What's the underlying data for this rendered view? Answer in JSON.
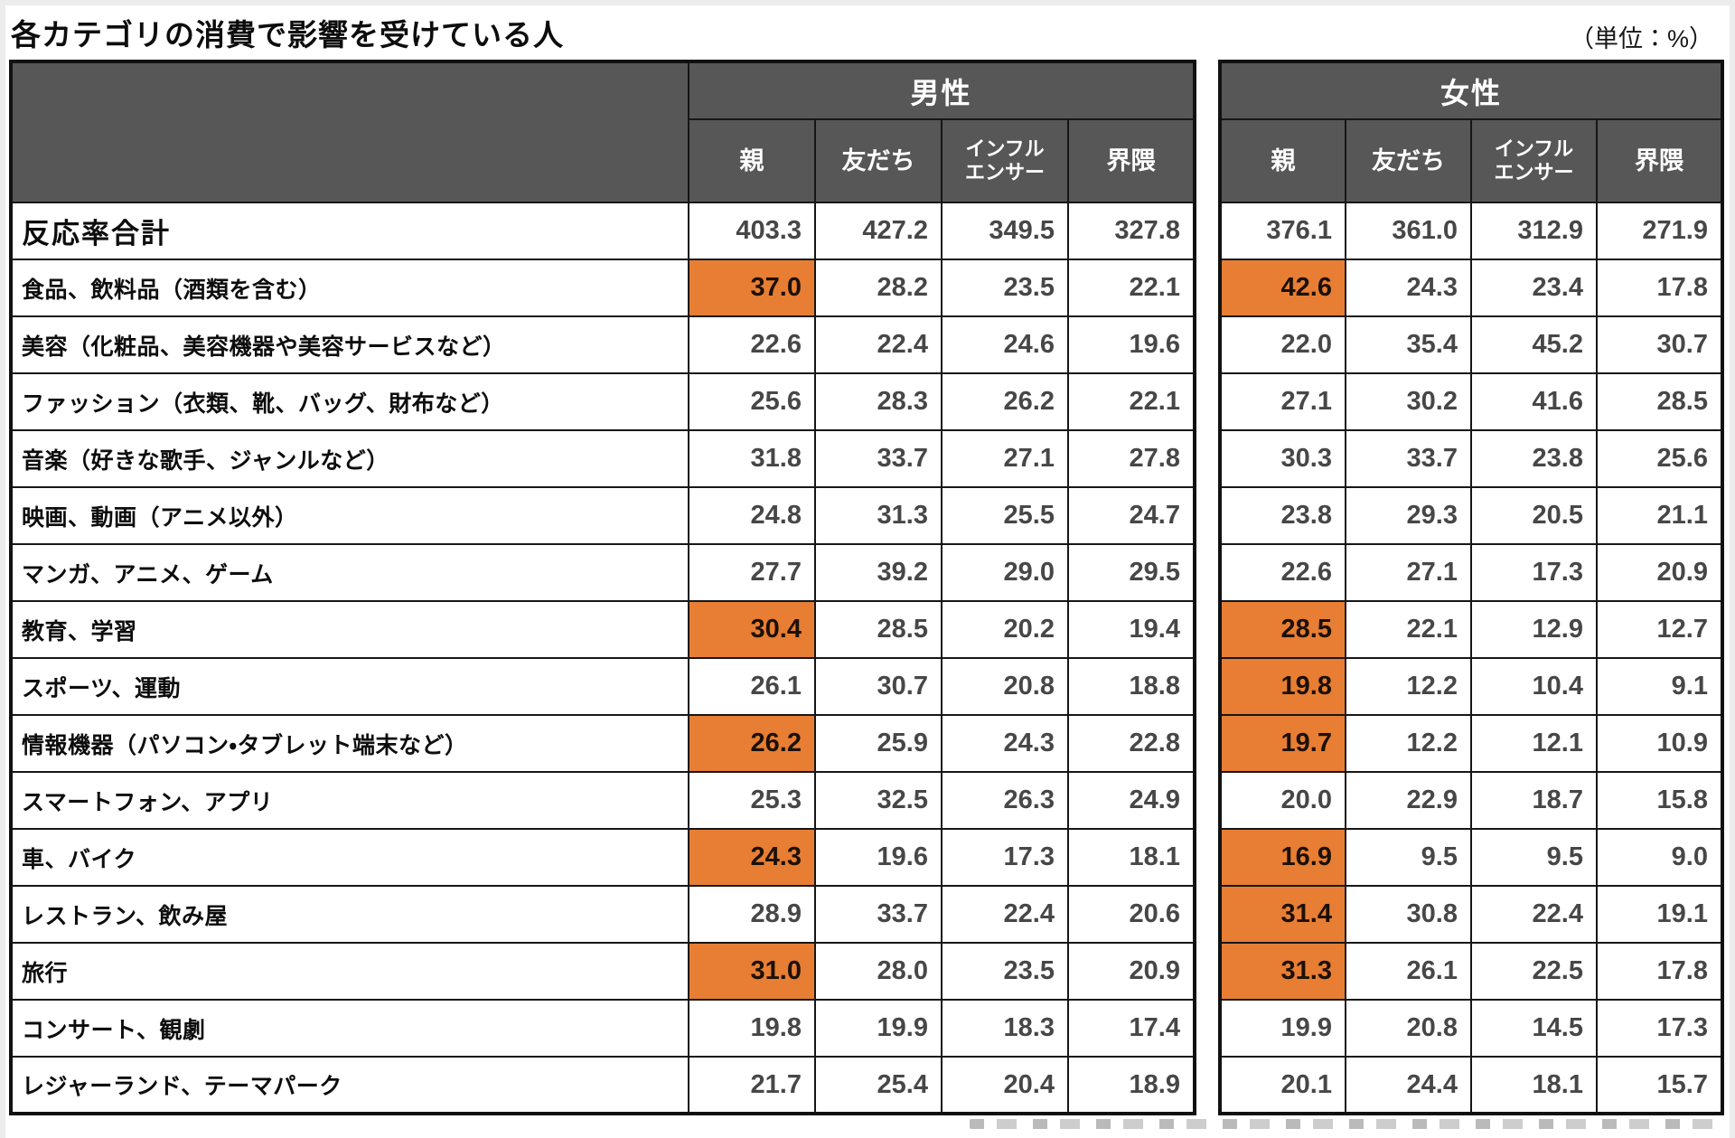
{
  "title": "各カテゴリの消費で影響を受けている人",
  "unit_label": "（単位：%）",
  "colors": {
    "header_bg": "#575757",
    "header_text": "#ffffff",
    "highlight_bg": "#e77e34",
    "grid_border": "#161616",
    "number_text": "#474747",
    "label_text": "#0d0d0d"
  },
  "display": {
    "subcolumns": [
      "親",
      "友だち",
      "インフル\nエンサー",
      "界隈"
    ]
  },
  "chart_data": {
    "type": "table",
    "title": "各カテゴリの消費で影響を受けている人",
    "unit": "%",
    "column_groups": [
      "男性",
      "女性"
    ],
    "subcolumns": [
      "親",
      "友だち",
      "インフルエンサー",
      "界隈"
    ],
    "rows": [
      {
        "label": "反応率合計",
        "is_total": true,
        "male": [
          "403.3",
          "427.2",
          "349.5",
          "327.8"
        ],
        "male_highlight": [
          false,
          false,
          false,
          false
        ],
        "female": [
          "376.1",
          "361.0",
          "312.9",
          "271.9"
        ],
        "female_highlight": [
          false,
          false,
          false,
          false
        ]
      },
      {
        "label": "食品、飲料品（酒類を含む）",
        "is_total": false,
        "male": [
          "37.0",
          "28.2",
          "23.5",
          "22.1"
        ],
        "male_highlight": [
          true,
          false,
          false,
          false
        ],
        "female": [
          "42.6",
          "24.3",
          "23.4",
          "17.8"
        ],
        "female_highlight": [
          true,
          false,
          false,
          false
        ]
      },
      {
        "label": "美容（化粧品、美容機器や美容サービスなど）",
        "is_total": false,
        "male": [
          "22.6",
          "22.4",
          "24.6",
          "19.6"
        ],
        "male_highlight": [
          false,
          false,
          false,
          false
        ],
        "female": [
          "22.0",
          "35.4",
          "45.2",
          "30.7"
        ],
        "female_highlight": [
          false,
          false,
          false,
          false
        ]
      },
      {
        "label": "ファッション（衣類、靴、バッグ、財布など）",
        "is_total": false,
        "male": [
          "25.6",
          "28.3",
          "26.2",
          "22.1"
        ],
        "male_highlight": [
          false,
          false,
          false,
          false
        ],
        "female": [
          "27.1",
          "30.2",
          "41.6",
          "28.5"
        ],
        "female_highlight": [
          false,
          false,
          false,
          false
        ]
      },
      {
        "label": "音楽（好きな歌手、ジャンルなど）",
        "is_total": false,
        "male": [
          "31.8",
          "33.7",
          "27.1",
          "27.8"
        ],
        "male_highlight": [
          false,
          false,
          false,
          false
        ],
        "female": [
          "30.3",
          "33.7",
          "23.8",
          "25.6"
        ],
        "female_highlight": [
          false,
          false,
          false,
          false
        ]
      },
      {
        "label": "映画、動画（アニメ以外）",
        "is_total": false,
        "male": [
          "24.8",
          "31.3",
          "25.5",
          "24.7"
        ],
        "male_highlight": [
          false,
          false,
          false,
          false
        ],
        "female": [
          "23.8",
          "29.3",
          "20.5",
          "21.1"
        ],
        "female_highlight": [
          false,
          false,
          false,
          false
        ]
      },
      {
        "label": "マンガ、アニメ、ゲーム",
        "is_total": false,
        "male": [
          "27.7",
          "39.2",
          "29.0",
          "29.5"
        ],
        "male_highlight": [
          false,
          false,
          false,
          false
        ],
        "female": [
          "22.6",
          "27.1",
          "17.3",
          "20.9"
        ],
        "female_highlight": [
          false,
          false,
          false,
          false
        ]
      },
      {
        "label": "教育、学習",
        "is_total": false,
        "male": [
          "30.4",
          "28.5",
          "20.2",
          "19.4"
        ],
        "male_highlight": [
          true,
          false,
          false,
          false
        ],
        "female": [
          "28.5",
          "22.1",
          "12.9",
          "12.7"
        ],
        "female_highlight": [
          true,
          false,
          false,
          false
        ]
      },
      {
        "label": "スポーツ、運動",
        "is_total": false,
        "male": [
          "26.1",
          "30.7",
          "20.8",
          "18.8"
        ],
        "male_highlight": [
          false,
          false,
          false,
          false
        ],
        "female": [
          "19.8",
          "12.2",
          "10.4",
          "9.1"
        ],
        "female_highlight": [
          true,
          false,
          false,
          false
        ]
      },
      {
        "label": "情報機器（パソコン・タブレット端末など）",
        "is_total": false,
        "male": [
          "26.2",
          "25.9",
          "24.3",
          "22.8"
        ],
        "male_highlight": [
          true,
          false,
          false,
          false
        ],
        "female": [
          "19.7",
          "12.2",
          "12.1",
          "10.9"
        ],
        "female_highlight": [
          true,
          false,
          false,
          false
        ]
      },
      {
        "label": "スマートフォン、アプリ",
        "is_total": false,
        "male": [
          "25.3",
          "32.5",
          "26.3",
          "24.9"
        ],
        "male_highlight": [
          false,
          false,
          false,
          false
        ],
        "female": [
          "20.0",
          "22.9",
          "18.7",
          "15.8"
        ],
        "female_highlight": [
          false,
          false,
          false,
          false
        ]
      },
      {
        "label": "車、バイク",
        "is_total": false,
        "male": [
          "24.3",
          "19.6",
          "17.3",
          "18.1"
        ],
        "male_highlight": [
          true,
          false,
          false,
          false
        ],
        "female": [
          "16.9",
          "9.5",
          "9.5",
          "9.0"
        ],
        "female_highlight": [
          true,
          false,
          false,
          false
        ]
      },
      {
        "label": "レストラン、飲み屋",
        "is_total": false,
        "male": [
          "28.9",
          "33.7",
          "22.4",
          "20.6"
        ],
        "male_highlight": [
          false,
          false,
          false,
          false
        ],
        "female": [
          "31.4",
          "30.8",
          "22.4",
          "19.1"
        ],
        "female_highlight": [
          true,
          false,
          false,
          false
        ]
      },
      {
        "label": "旅行",
        "is_total": false,
        "male": [
          "31.0",
          "28.0",
          "23.5",
          "20.9"
        ],
        "male_highlight": [
          true,
          false,
          false,
          false
        ],
        "female": [
          "31.3",
          "26.1",
          "22.5",
          "17.8"
        ],
        "female_highlight": [
          true,
          false,
          false,
          false
        ]
      },
      {
        "label": "コンサート、観劇",
        "is_total": false,
        "male": [
          "19.8",
          "19.9",
          "18.3",
          "17.4"
        ],
        "male_highlight": [
          false,
          false,
          false,
          false
        ],
        "female": [
          "19.9",
          "20.8",
          "14.5",
          "17.3"
        ],
        "female_highlight": [
          false,
          false,
          false,
          false
        ]
      },
      {
        "label": "レジャーランド、テーマパーク",
        "is_total": false,
        "male": [
          "21.7",
          "25.4",
          "20.4",
          "18.9"
        ],
        "male_highlight": [
          false,
          false,
          false,
          false
        ],
        "female": [
          "20.1",
          "24.4",
          "18.1",
          "15.7"
        ],
        "female_highlight": [
          false,
          false,
          false,
          false
        ]
      }
    ]
  }
}
